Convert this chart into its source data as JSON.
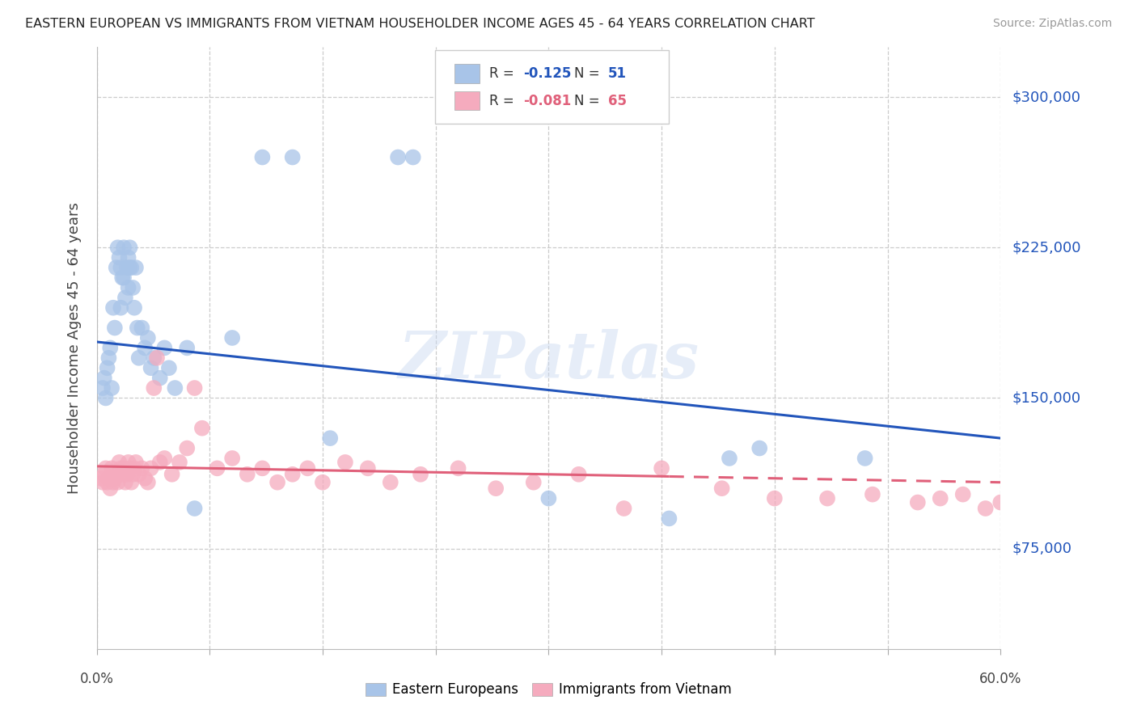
{
  "title": "EASTERN EUROPEAN VS IMMIGRANTS FROM VIETNAM HOUSEHOLDER INCOME AGES 45 - 64 YEARS CORRELATION CHART",
  "source": "Source: ZipAtlas.com",
  "ylabel": "Householder Income Ages 45 - 64 years",
  "yticks": [
    75000,
    150000,
    225000,
    300000
  ],
  "ytick_labels": [
    "$75,000",
    "$150,000",
    "$225,000",
    "$300,000"
  ],
  "xlim": [
    0.0,
    0.6
  ],
  "ylim": [
    25000,
    325000
  ],
  "blue_R": "-0.125",
  "blue_N": "51",
  "pink_R": "-0.081",
  "pink_N": "65",
  "blue_color": "#A8C4E8",
  "pink_color": "#F5ABBE",
  "blue_line_color": "#2255BB",
  "pink_line_color": "#E0607A",
  "watermark": "ZIPatlas",
  "blue_line_x0": 0.0,
  "blue_line_y0": 178000,
  "blue_line_x1": 0.6,
  "blue_line_y1": 130000,
  "pink_line_x0": 0.0,
  "pink_line_y0": 116000,
  "pink_line_x1": 0.6,
  "pink_line_y1": 108000,
  "pink_line_solid_end": 0.38,
  "blue_scatter_x": [
    0.004,
    0.005,
    0.006,
    0.007,
    0.008,
    0.009,
    0.01,
    0.011,
    0.012,
    0.013,
    0.014,
    0.015,
    0.016,
    0.016,
    0.017,
    0.018,
    0.018,
    0.019,
    0.02,
    0.021,
    0.021,
    0.022,
    0.022,
    0.023,
    0.024,
    0.025,
    0.026,
    0.027,
    0.028,
    0.03,
    0.032,
    0.034,
    0.036,
    0.038,
    0.042,
    0.045,
    0.048,
    0.052,
    0.06,
    0.065,
    0.09,
    0.11,
    0.13,
    0.155,
    0.2,
    0.21,
    0.3,
    0.38,
    0.42,
    0.44,
    0.51
  ],
  "blue_scatter_y": [
    155000,
    160000,
    150000,
    165000,
    170000,
    175000,
    155000,
    195000,
    185000,
    215000,
    225000,
    220000,
    215000,
    195000,
    210000,
    210000,
    225000,
    200000,
    215000,
    220000,
    205000,
    215000,
    225000,
    215000,
    205000,
    195000,
    215000,
    185000,
    170000,
    185000,
    175000,
    180000,
    165000,
    170000,
    160000,
    175000,
    165000,
    155000,
    175000,
    95000,
    180000,
    270000,
    270000,
    130000,
    270000,
    270000,
    100000,
    90000,
    120000,
    125000,
    120000
  ],
  "pink_scatter_x": [
    0.003,
    0.004,
    0.005,
    0.006,
    0.007,
    0.008,
    0.009,
    0.01,
    0.011,
    0.012,
    0.013,
    0.014,
    0.015,
    0.016,
    0.017,
    0.018,
    0.019,
    0.02,
    0.021,
    0.022,
    0.023,
    0.024,
    0.025,
    0.026,
    0.028,
    0.03,
    0.032,
    0.034,
    0.036,
    0.038,
    0.04,
    0.042,
    0.045,
    0.05,
    0.055,
    0.06,
    0.065,
    0.07,
    0.08,
    0.09,
    0.1,
    0.11,
    0.12,
    0.13,
    0.14,
    0.15,
    0.165,
    0.18,
    0.195,
    0.215,
    0.24,
    0.265,
    0.29,
    0.32,
    0.35,
    0.375,
    0.415,
    0.45,
    0.485,
    0.515,
    0.545,
    0.56,
    0.575,
    0.59,
    0.6
  ],
  "pink_scatter_y": [
    110000,
    108000,
    112000,
    115000,
    108000,
    110000,
    105000,
    115000,
    108000,
    110000,
    112000,
    108000,
    118000,
    115000,
    112000,
    115000,
    108000,
    112000,
    118000,
    115000,
    108000,
    112000,
    115000,
    118000,
    112000,
    115000,
    110000,
    108000,
    115000,
    155000,
    170000,
    118000,
    120000,
    112000,
    118000,
    125000,
    155000,
    135000,
    115000,
    120000,
    112000,
    115000,
    108000,
    112000,
    115000,
    108000,
    118000,
    115000,
    108000,
    112000,
    115000,
    105000,
    108000,
    112000,
    95000,
    115000,
    105000,
    100000,
    100000,
    102000,
    98000,
    100000,
    102000,
    95000,
    98000
  ]
}
